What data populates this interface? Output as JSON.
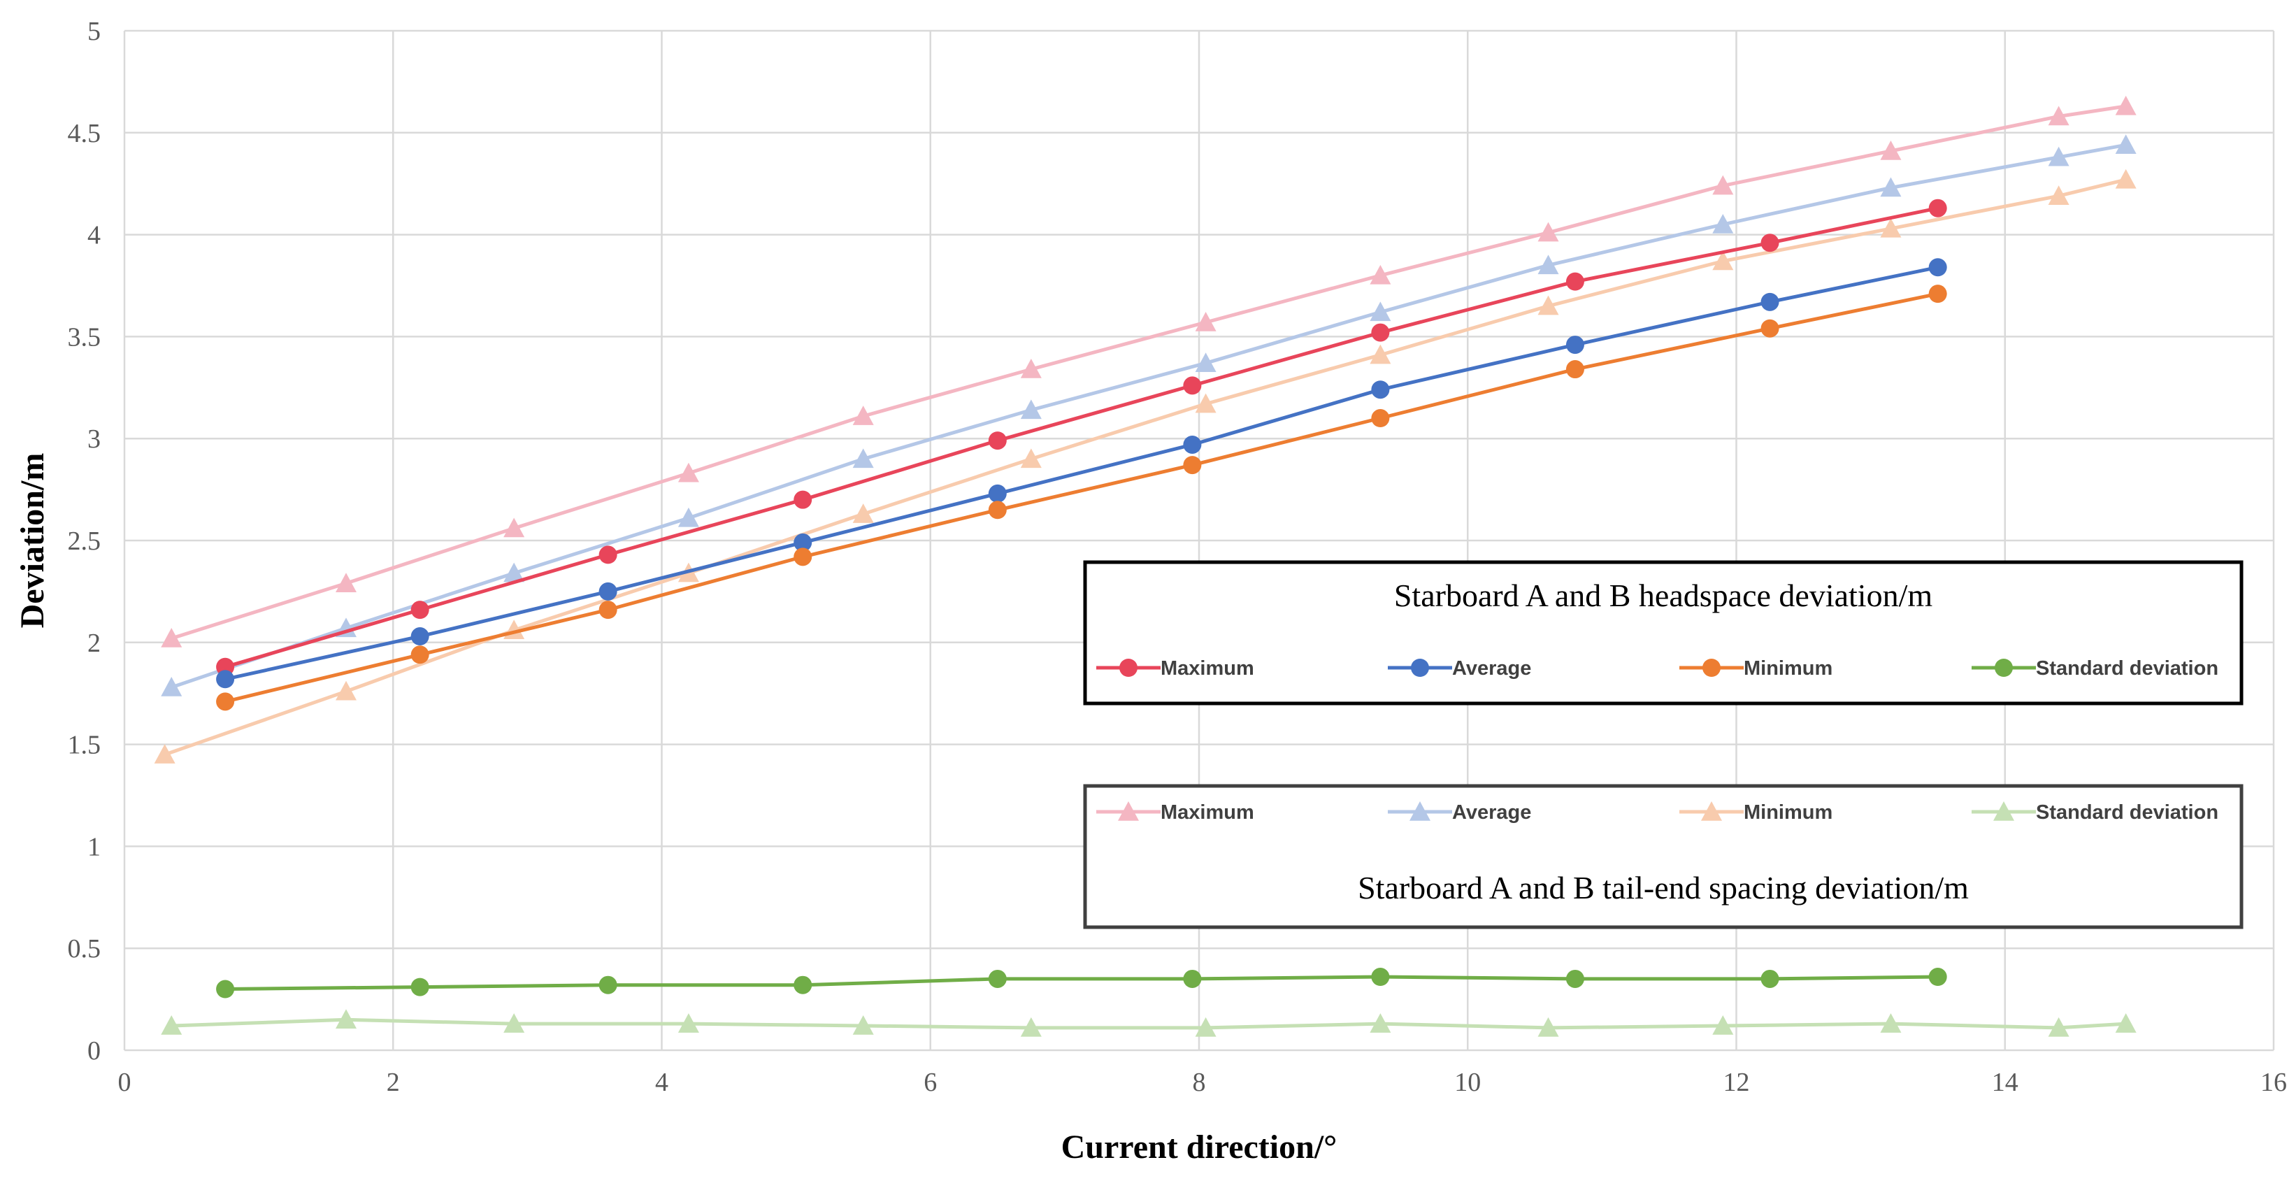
{
  "chart_data": {
    "type": "line",
    "xlabel": "Current direction/°",
    "ylabel": "Deviation/m",
    "xlim": [
      0,
      16
    ],
    "ylim": [
      0,
      5
    ],
    "x_ticks": [
      "0",
      "2",
      "4",
      "6",
      "8",
      "10",
      "12",
      "14",
      "16"
    ],
    "y_ticks": [
      "0",
      "0.5",
      "1",
      "1.5",
      "2",
      "2.5",
      "3",
      "3.5",
      "4",
      "4.5",
      "5"
    ],
    "grid": true,
    "legends": [
      {
        "title": "Starboard A and B headspace deviation/m",
        "placement": "center-right",
        "entries": [
          "Maximum",
          "Average",
          "Minimum",
          "Standard deviation"
        ]
      },
      {
        "title": "Starboard A and B tail-end spacing deviation/m",
        "placement": "lower-right",
        "entries": [
          "Maximum",
          "Average",
          "Minimum",
          "Standard deviation"
        ]
      }
    ],
    "series": [
      {
        "name": "Maximum",
        "group": "headspace",
        "marker": "circle",
        "color": "#e8455a",
        "x": [
          0.75,
          2.2,
          3.6,
          5.05,
          6.5,
          7.95,
          9.35,
          10.8,
          12.25,
          13.5
        ],
        "y": [
          1.88,
          2.16,
          2.43,
          2.7,
          2.99,
          3.26,
          3.52,
          3.77,
          3.96,
          4.13
        ]
      },
      {
        "name": "Average",
        "group": "headspace",
        "marker": "circle",
        "color": "#4472c4",
        "x": [
          0.75,
          2.2,
          3.6,
          5.05,
          6.5,
          7.95,
          9.35,
          10.8,
          12.25,
          13.5
        ],
        "y": [
          1.82,
          2.03,
          2.25,
          2.49,
          2.73,
          2.97,
          3.24,
          3.46,
          3.67,
          3.84
        ]
      },
      {
        "name": "Minimum",
        "group": "headspace",
        "marker": "circle",
        "color": "#ed7d31",
        "x": [
          0.75,
          2.2,
          3.6,
          5.05,
          6.5,
          7.95,
          9.35,
          10.8,
          12.25,
          13.5
        ],
        "y": [
          1.71,
          1.94,
          2.16,
          2.42,
          2.65,
          2.87,
          3.1,
          3.34,
          3.54,
          3.71
        ]
      },
      {
        "name": "Standard deviation",
        "group": "headspace",
        "marker": "circle",
        "color": "#70ad47",
        "x": [
          0.75,
          2.2,
          3.6,
          5.05,
          6.5,
          7.95,
          9.35,
          10.8,
          12.25,
          13.5
        ],
        "y": [
          0.3,
          0.31,
          0.32,
          0.32,
          0.35,
          0.35,
          0.36,
          0.35,
          0.35,
          0.36
        ]
      },
      {
        "name": "Maximum",
        "group": "tail-end",
        "marker": "triangle",
        "color": "#f4b6c2",
        "x": [
          0.35,
          1.65,
          2.9,
          4.2,
          5.5,
          6.75,
          8.05,
          9.35,
          10.6,
          11.9,
          13.15,
          14.4,
          14.9
        ],
        "y": [
          2.02,
          2.29,
          2.56,
          2.83,
          3.11,
          3.34,
          3.57,
          3.8,
          4.01,
          4.24,
          4.41,
          4.58,
          4.63
        ]
      },
      {
        "name": "Average",
        "group": "tail-end",
        "marker": "triangle",
        "color": "#b4c7e7",
        "x": [
          0.35,
          1.65,
          2.9,
          4.2,
          5.5,
          6.75,
          8.05,
          9.35,
          10.6,
          11.9,
          13.15,
          14.4,
          14.9
        ],
        "y": [
          1.78,
          2.07,
          2.34,
          2.61,
          2.9,
          3.14,
          3.37,
          3.62,
          3.85,
          4.05,
          4.23,
          4.38,
          4.44
        ]
      },
      {
        "name": "Minimum",
        "group": "tail-end",
        "marker": "triangle",
        "color": "#f8cbad",
        "x": [
          0.3,
          1.65,
          2.9,
          4.2,
          5.5,
          6.75,
          8.05,
          9.35,
          10.6,
          11.9,
          13.15,
          14.4,
          14.9
        ],
        "y": [
          1.45,
          1.76,
          2.06,
          2.34,
          2.63,
          2.9,
          3.17,
          3.41,
          3.65,
          3.87,
          4.03,
          4.19,
          4.27
        ]
      },
      {
        "name": "Standard deviation",
        "group": "tail-end",
        "marker": "triangle",
        "color": "#c5e0b4",
        "x": [
          0.35,
          1.65,
          2.9,
          4.2,
          5.5,
          6.75,
          8.05,
          9.35,
          10.6,
          11.9,
          13.15,
          14.4,
          14.9
        ],
        "y": [
          0.12,
          0.15,
          0.13,
          0.13,
          0.12,
          0.11,
          0.11,
          0.13,
          0.11,
          0.12,
          0.13,
          0.11,
          0.13
        ]
      }
    ]
  }
}
